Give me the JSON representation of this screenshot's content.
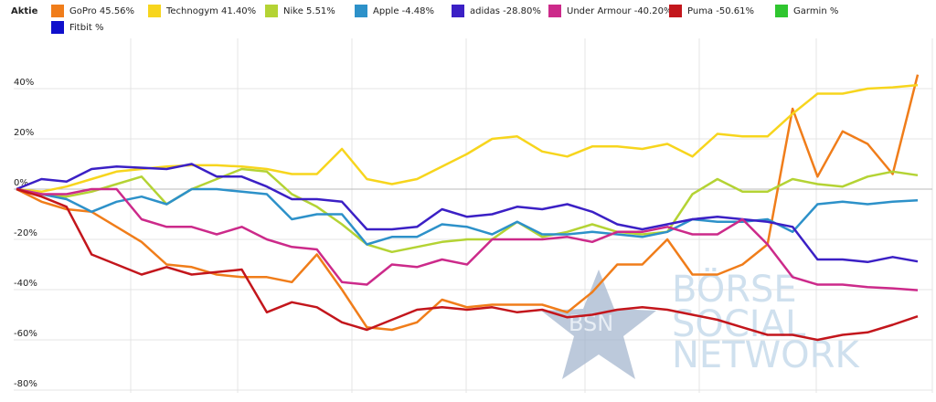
{
  "chart_data": {
    "type": "line",
    "legend_title": "Aktie",
    "watermark": [
      "BSN",
      "BÖRSE",
      "SOCIAL",
      "NETWORK"
    ],
    "ylim": [
      -80,
      60
    ],
    "yticks": [
      {
        "value": 40,
        "label": "40%"
      },
      {
        "value": 20,
        "label": "20%"
      },
      {
        "value": 0,
        "label": "0%"
      },
      {
        "value": -20,
        "label": "-20%"
      },
      {
        "value": -40,
        "label": "-40%"
      },
      {
        "value": -60,
        "label": "-60%"
      },
      {
        "value": -80,
        "label": "-80%"
      }
    ],
    "grid": true,
    "series": [
      {
        "name": "GoPro  45.56%",
        "color": "#f07d1a",
        "values": [
          0,
          -5,
          -8,
          -9,
          -15,
          -21,
          -30,
          -31,
          -34,
          -35,
          -35,
          -37,
          -26,
          -40,
          -55,
          -56,
          -53,
          -44,
          -47,
          -46,
          -46,
          -46,
          -49,
          -41,
          -30,
          -30,
          -20,
          -34,
          -34,
          -30,
          -22,
          32,
          5,
          23,
          18,
          6,
          45.56
        ]
      },
      {
        "name": "Technogym  41.40%",
        "color": "#f7d51d",
        "values": [
          0,
          -1,
          1,
          4,
          7,
          8,
          9,
          9.5,
          9.5,
          9,
          8,
          6,
          6,
          16,
          4,
          2,
          4,
          9,
          14,
          20,
          21,
          15,
          13,
          17,
          17,
          16,
          18,
          13,
          22,
          21,
          21,
          30,
          38,
          38,
          40,
          40.5,
          41.4
        ]
      },
      {
        "name": "Nike  5.51%",
        "color": "#b4d334",
        "values": [
          0,
          -2,
          -3,
          -1,
          2,
          5,
          -6,
          0,
          4,
          8,
          7,
          -2,
          -7,
          -14,
          -22,
          -25,
          -23,
          -21,
          -20,
          -20,
          -13,
          -19,
          -17,
          -14,
          -17,
          -18,
          -17,
          -2,
          4,
          -1,
          -1,
          4,
          2,
          1,
          5,
          7,
          5.51
        ]
      },
      {
        "name": "Apple  -4.48%",
        "color": "#2d91c9",
        "values": [
          0,
          -2,
          -4,
          -9,
          -5,
          -3,
          -6,
          0,
          0,
          -1,
          -2,
          -12,
          -10,
          -10,
          -22,
          -19,
          -19,
          -14,
          -15,
          -18,
          -13,
          -18,
          -18,
          -17,
          -18,
          -19,
          -17,
          -12,
          -13,
          -13,
          -12,
          -17,
          -6,
          -5,
          -6,
          -5,
          -4.48
        ]
      },
      {
        "name": "adidas  -28.80%",
        "color": "#3b20c5",
        "values": [
          0,
          4,
          3,
          8,
          9,
          8.5,
          8,
          10,
          5,
          5,
          1,
          -4,
          -4,
          -5,
          -16,
          -16,
          -15,
          -8,
          -11,
          -10,
          -7,
          -8,
          -6,
          -9,
          -14,
          -16,
          -14,
          -12,
          -11,
          -12,
          -13,
          -15,
          -28,
          -28,
          -29,
          -27,
          -28.8
        ]
      },
      {
        "name": "Under Armour  -40.20%",
        "color": "#cc2a8a",
        "values": [
          0,
          -2,
          -2,
          0,
          0,
          -12,
          -15,
          -15,
          -18,
          -15,
          -20,
          -23,
          -24,
          -37,
          -38,
          -30,
          -31,
          -28,
          -30,
          -20,
          -20,
          -20,
          -19,
          -21,
          -17,
          -17,
          -15,
          -18,
          -18,
          -12,
          -22,
          -35,
          -38,
          -38,
          -39,
          -39.5,
          -40.2
        ]
      },
      {
        "name": "Puma  -50.61%",
        "color": "#c3161c",
        "values": [
          0,
          -3,
          -7,
          -26,
          -30,
          -34,
          -31,
          -34,
          -33,
          -32,
          -49,
          -45,
          -47,
          -53,
          -56,
          -52,
          -48,
          -47,
          -48,
          -47,
          -49,
          -48,
          -51,
          -50,
          -48,
          -47,
          -48,
          -50,
          -52,
          -55,
          -58,
          -58,
          -60,
          -58,
          -57,
          -54,
          -50.61
        ]
      },
      {
        "name": "Garmin  %",
        "color": "#2fc62f",
        "values": [
          null,
          null,
          null,
          null,
          null,
          null,
          null,
          null,
          null,
          null,
          null,
          null,
          null,
          null,
          null,
          null,
          null,
          null,
          null,
          null,
          null,
          null,
          null,
          null,
          null,
          null,
          null,
          null,
          null,
          null,
          null,
          null,
          null,
          null,
          null,
          null,
          null
        ]
      },
      {
        "name": "Fitbit  %",
        "color": "#1010cc",
        "values": [
          null,
          null,
          null,
          null,
          null,
          null,
          null,
          null,
          null,
          null,
          null,
          null,
          null,
          null,
          null,
          null,
          null,
          null,
          null,
          null,
          null,
          null,
          null,
          null,
          null,
          null,
          null,
          null,
          null,
          null,
          null,
          null,
          null,
          null,
          null,
          null,
          null
        ]
      }
    ]
  }
}
